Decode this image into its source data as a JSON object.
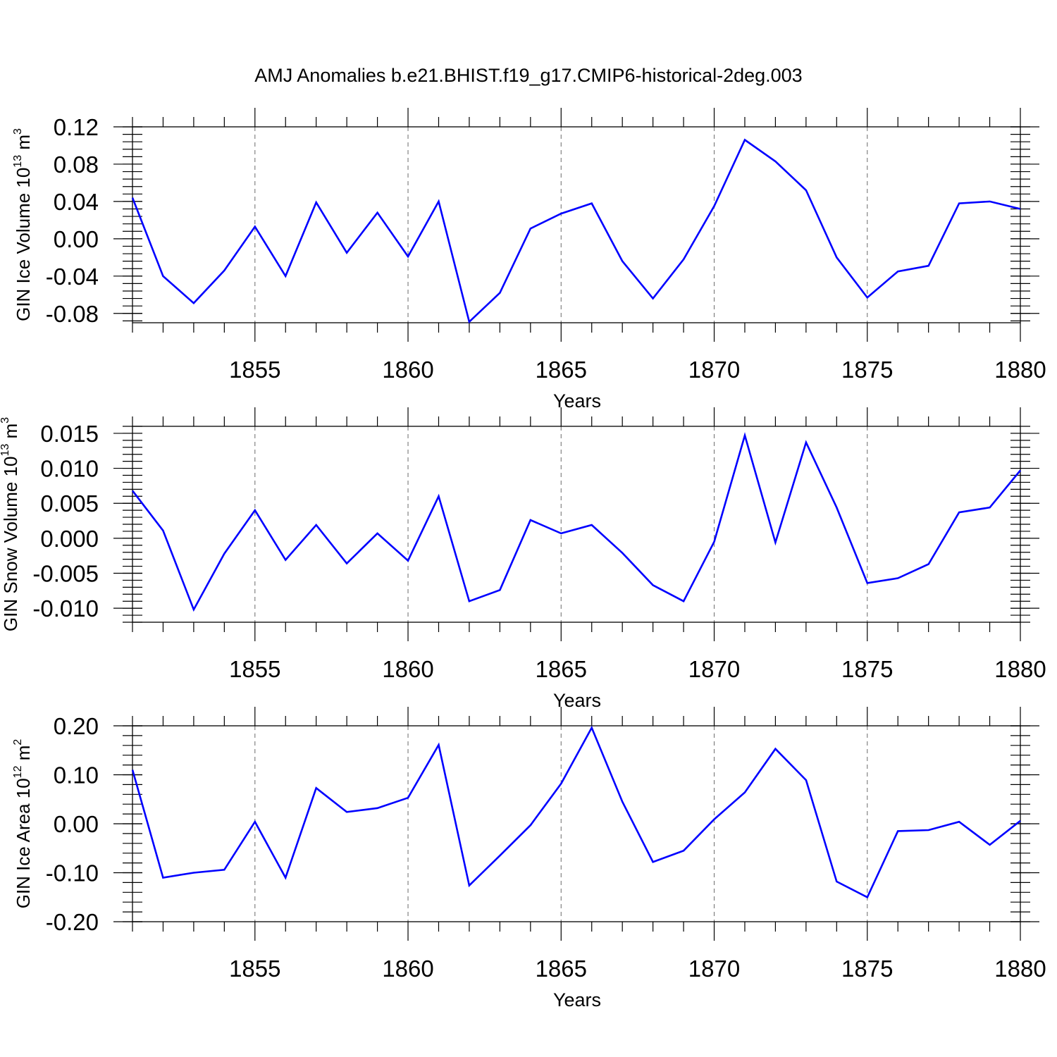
{
  "title": "AMJ Anomalies b.e21.BHIST.f19_g17.CMIP6-historical-2deg.003",
  "colors": {
    "line": "#0000ff",
    "axis": "#000000",
    "grid": "#777777"
  },
  "chart_data": [
    {
      "type": "line",
      "ylabel_main": "GIN Ice Volume 10",
      "ylabel_exp": "13",
      "ylabel_unit": " m",
      "ylabel_unit_exp": "3",
      "xlabel": "Years",
      "xlim": [
        1851,
        1880
      ],
      "ylim": [
        -0.09,
        0.12
      ],
      "xticks": [
        1855,
        1860,
        1865,
        1870,
        1875,
        1880
      ],
      "xtick_labels": [
        "1855",
        "1860",
        "1865",
        "1870",
        "1875",
        "1880"
      ],
      "yticks": [
        -0.08,
        -0.04,
        0.0,
        0.04,
        0.08,
        0.12
      ],
      "ytick_labels": [
        "-0.08",
        "-0.04",
        "0.00",
        "0.04",
        "0.08",
        "0.12"
      ],
      "yminor_step": 0.008,
      "x": [
        1851,
        1852,
        1853,
        1854,
        1855,
        1856,
        1857,
        1858,
        1859,
        1860,
        1861,
        1862,
        1863,
        1864,
        1865,
        1866,
        1867,
        1868,
        1869,
        1870,
        1871,
        1872,
        1873,
        1874,
        1875,
        1876,
        1877,
        1878,
        1879,
        1880
      ],
      "values": [
        0.044,
        -0.04,
        -0.069,
        -0.034,
        0.013,
        -0.04,
        0.039,
        -0.015,
        0.028,
        -0.019,
        0.04,
        -0.089,
        -0.058,
        0.011,
        0.027,
        0.038,
        -0.024,
        -0.064,
        -0.022,
        0.035,
        0.106,
        0.083,
        0.052,
        -0.02,
        -0.063,
        -0.035,
        -0.029,
        0.038,
        0.04,
        0.032
      ]
    },
    {
      "type": "line",
      "ylabel_main": "GIN Snow Volume 10",
      "ylabel_exp": "13",
      "ylabel_unit": " m",
      "ylabel_unit_exp": "3",
      "xlabel": "Years",
      "xlim": [
        1851,
        1880
      ],
      "ylim": [
        -0.012,
        0.016
      ],
      "xticks": [
        1855,
        1860,
        1865,
        1870,
        1875,
        1880
      ],
      "xtick_labels": [
        "1855",
        "1860",
        "1865",
        "1870",
        "1875",
        "1880"
      ],
      "yticks": [
        -0.01,
        -0.005,
        0.0,
        0.005,
        0.01,
        0.015
      ],
      "ytick_labels": [
        "-0.010",
        "-0.005",
        "0.000",
        "0.005",
        "0.010",
        "0.015"
      ],
      "yminor_step": 0.001,
      "x": [
        1851,
        1852,
        1853,
        1854,
        1855,
        1856,
        1857,
        1858,
        1859,
        1860,
        1861,
        1862,
        1863,
        1864,
        1865,
        1866,
        1867,
        1868,
        1869,
        1870,
        1871,
        1872,
        1873,
        1874,
        1875,
        1876,
        1877,
        1878,
        1879,
        1880
      ],
      "values": [
        0.0068,
        0.0011,
        -0.0102,
        -0.0022,
        0.004,
        -0.0031,
        0.0019,
        -0.0036,
        0.0007,
        -0.0032,
        0.006,
        -0.009,
        -0.0074,
        0.0026,
        0.0007,
        0.0019,
        -0.0021,
        -0.0067,
        -0.009,
        -0.0005,
        0.0147,
        -0.0006,
        0.0137,
        0.0044,
        -0.0064,
        -0.0057,
        -0.0037,
        0.0037,
        0.0044,
        0.0097
      ]
    },
    {
      "type": "line",
      "ylabel_main": "GIN Ice Area 10",
      "ylabel_exp": "12",
      "ylabel_unit": " m",
      "ylabel_unit_exp": "2",
      "xlabel": "Years",
      "xlim": [
        1851,
        1880
      ],
      "ylim": [
        -0.2,
        0.2
      ],
      "xticks": [
        1855,
        1860,
        1865,
        1870,
        1875,
        1880
      ],
      "xtick_labels": [
        "1855",
        "1860",
        "1865",
        "1870",
        "1875",
        "1880"
      ],
      "yticks": [
        -0.2,
        -0.1,
        0.0,
        0.1,
        0.2
      ],
      "ytick_labels": [
        "-0.20",
        "-0.10",
        "0.00",
        "0.10",
        "0.20"
      ],
      "yminor_step": 0.02,
      "x": [
        1851,
        1852,
        1853,
        1854,
        1855,
        1856,
        1857,
        1858,
        1859,
        1860,
        1861,
        1862,
        1863,
        1864,
        1865,
        1866,
        1867,
        1868,
        1869,
        1870,
        1871,
        1872,
        1873,
        1874,
        1875,
        1876,
        1877,
        1878,
        1879,
        1880
      ],
      "values": [
        0.11,
        -0.11,
        -0.1,
        -0.094,
        0.004,
        -0.11,
        0.073,
        0.024,
        0.032,
        0.053,
        0.161,
        -0.126,
        -0.065,
        -0.003,
        0.082,
        0.196,
        0.045,
        -0.078,
        -0.055,
        0.009,
        0.064,
        0.153,
        0.089,
        -0.118,
        -0.15,
        -0.015,
        -0.013,
        0.004,
        -0.043,
        0.006
      ]
    }
  ]
}
